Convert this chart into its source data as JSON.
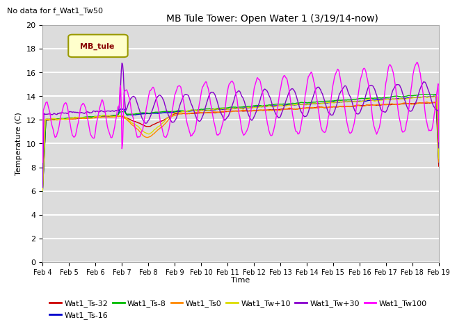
{
  "title": "MB Tule Tower: Open Water 1 (3/19/14-now)",
  "subtitle": "No data for f_Wat1_Tw50",
  "xlabel": "Time",
  "ylabel": "Temperature (C)",
  "ylim": [
    0,
    20
  ],
  "bg_color": "#dcdcdc",
  "grid_color": "white",
  "legend_label": "MB_tule",
  "series": {
    "Wat1_Ts-32": {
      "color": "#cc0000",
      "lw": 1.0
    },
    "Wat1_Ts-16": {
      "color": "#0000cc",
      "lw": 1.0
    },
    "Wat1_Ts-8": {
      "color": "#00bb00",
      "lw": 1.0
    },
    "Wat1_Ts0": {
      "color": "#ff8800",
      "lw": 1.0
    },
    "Wat1_Tw+10": {
      "color": "#dddd00",
      "lw": 1.0
    },
    "Wat1_Tw+30": {
      "color": "#8800cc",
      "lw": 1.0
    },
    "Wat1_Tw100": {
      "color": "#ff00ff",
      "lw": 1.0
    }
  },
  "xtick_labels": [
    "Feb 4",
    "Feb 5",
    "Feb 6",
    "Feb 7",
    "Feb 8",
    "Feb 9",
    "Feb 10",
    "Feb 11",
    "Feb 12",
    "Feb 13",
    "Feb 14",
    "Feb 15",
    "Feb 16",
    "Feb 17",
    "Feb 18",
    "Feb 19"
  ]
}
